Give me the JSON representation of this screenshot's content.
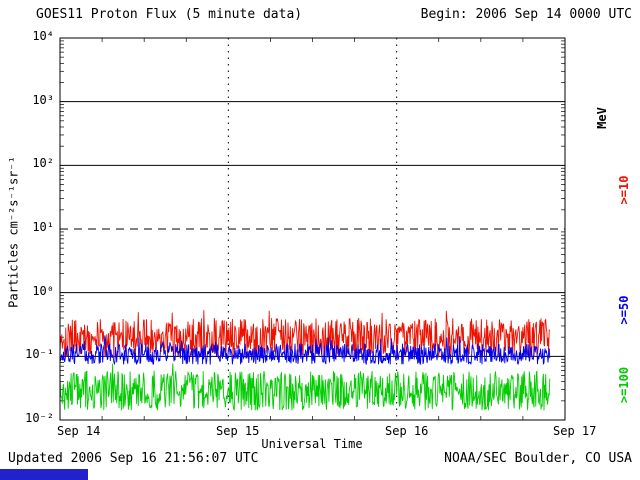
{
  "header": {
    "title": "GOES11 Proton Flux (5 minute data)",
    "begin": "Begin: 2006 Sep 14 0000 UTC"
  },
  "footer": {
    "updated": "Updated 2006 Sep 16 21:56:07 UTC",
    "source": "NOAA/SEC Boulder, CO USA"
  },
  "chart_data": {
    "type": "line",
    "title": "GOES11 Proton Flux (5 minute data)",
    "subtitle": "Begin: 2006 Sep 14 0000 UTC",
    "xlabel": "Universal Time",
    "ylabel": "Particles cm⁻²s⁻¹sr⁻¹",
    "x_ticks": [
      "Sep 14",
      "Sep 15",
      "Sep 16",
      "Sep 17"
    ],
    "y_ticks": [
      "10⁴",
      "10³",
      "10²",
      "10¹",
      "10⁰",
      "10⁻¹",
      "10⁻²"
    ],
    "y_exp_range": [
      -2,
      4
    ],
    "x_days": 3,
    "grid": {
      "solid_exps": [
        3,
        2,
        0,
        -1
      ],
      "dashed_exps": [
        1
      ],
      "dotted_vertical_days": [
        1,
        2
      ]
    },
    "legend_right": [
      {
        "label": "MeV",
        "color": "#000000"
      },
      {
        "label": ">=10",
        "color": "#ee1100"
      },
      {
        "label": ">=50",
        "color": "#0000ee"
      },
      {
        "label": ">=100",
        "color": "#00cc00"
      }
    ],
    "series": [
      {
        "name": "gte10MeV",
        "color": "#ee1100",
        "log_base": -1.02,
        "log_span": 0.62,
        "spike_prob": 0.04,
        "spike_add": 0.18,
        "seed": 101
      },
      {
        "name": "gte100MeV",
        "color": "#00cc00",
        "log_base": -1.85,
        "log_span": 0.62,
        "spike_prob": 0.03,
        "spike_add": 0.12,
        "seed": 303
      },
      {
        "name": "gte50MeV",
        "color": "#0000ee",
        "log_base": -1.13,
        "log_span": 0.33,
        "spike_prob": 0.05,
        "spike_add": 0.14,
        "seed": 202
      }
    ],
    "approx_levels_note": ">=10 MeV ~0.2, >=50 MeV ~0.1, >=100 MeV ~0.04 particles cm-2 s-1 sr-1, quiet background for full interval",
    "end_fraction": 0.971,
    "points_per_day": 288,
    "legend_position": "right",
    "grid_on": true
  }
}
